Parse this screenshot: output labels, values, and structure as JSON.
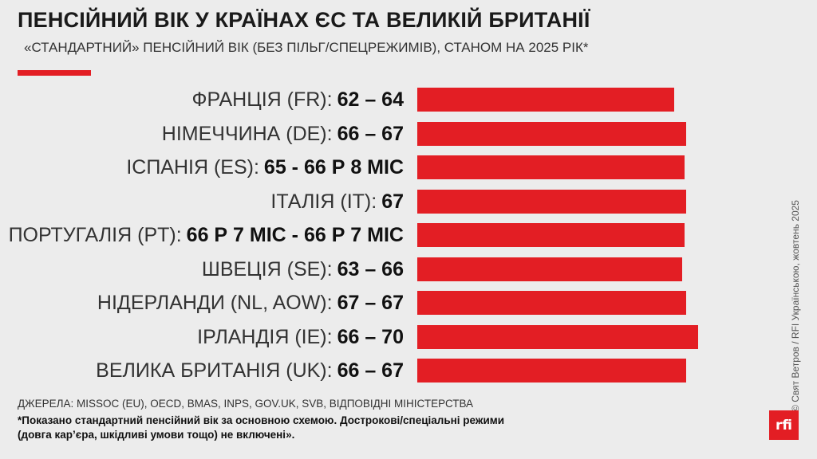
{
  "header": {
    "title": "ПЕНСІЙНИЙ ВІК У КРАЇНАХ ЄС ТА ВЕЛИКІЙ БРИТАНІЇ",
    "subtitle": "«СТАНДАРТНИЙ» ПЕНСІЙНИЙ ВІК (БЕЗ ПІЛЬГ/СПЕЦРЕЖИМІВ), СТАНОМ НА 2025 РІК*"
  },
  "colors": {
    "accent": "#e31e24",
    "background": "#ececec"
  },
  "chart_data": {
    "type": "bar",
    "orientation": "horizontal",
    "title": "ПЕНСІЙНИЙ ВІК У КРАЇНАХ ЄС ТА ВЕЛИКІЙ БРИТАНІЇ",
    "subtitle": "«СТАНДАРТНИЙ» ПЕНСІЙНИЙ ВІК (БЕЗ ПІЛЬГ/СПЕЦРЕЖИМІВ), СТАНОМ НА 2025 РІК*",
    "xlim": [
      0,
      70
    ],
    "grid": false,
    "categories": [
      "ФРАНЦІЯ (FR):",
      "НІМЕЧЧИНА (DE):",
      "ІСПАНІЯ (ES):",
      "ІТАЛІЯ (IT):",
      "ПОРТУГАЛІЯ (PT):",
      "ШВЕЦІЯ (SE):",
      "НІДЕРЛАНДИ (NL, AOW):",
      "ІРЛАНДІЯ (IE):",
      "ВЕЛИКА БРИТАНІЯ (UK):"
    ],
    "range_labels": [
      "62 – 64",
      "66 – 67",
      "65 - 66 Р 8 МІС",
      "67",
      "66 Р 7 МІС - 66 Р 7 МІС",
      "63 – 66",
      "67 – 67",
      "66 – 70",
      "66 – 67"
    ],
    "values": [
      64,
      67,
      66.67,
      67,
      66.58,
      66,
      67,
      70,
      67
    ]
  },
  "footer": {
    "sources": "ДЖЕРЕЛА: MISSOC (EU), OECD, BMAS, INPS, GOV.UK, SVB, ВІДПОВІДНІ МІНІСТЕРСТВА",
    "note_line1": "*Показано стандартний пенсійний вік за основною схемою. Дострокові/спеціальні режими",
    "note_line2": "(довга кар’єра, шкідливі умови тощо) не включені».",
    "credit": "© Свят Ветров / RFI Українською, жовтень 2025",
    "logo_text": "rfi"
  }
}
